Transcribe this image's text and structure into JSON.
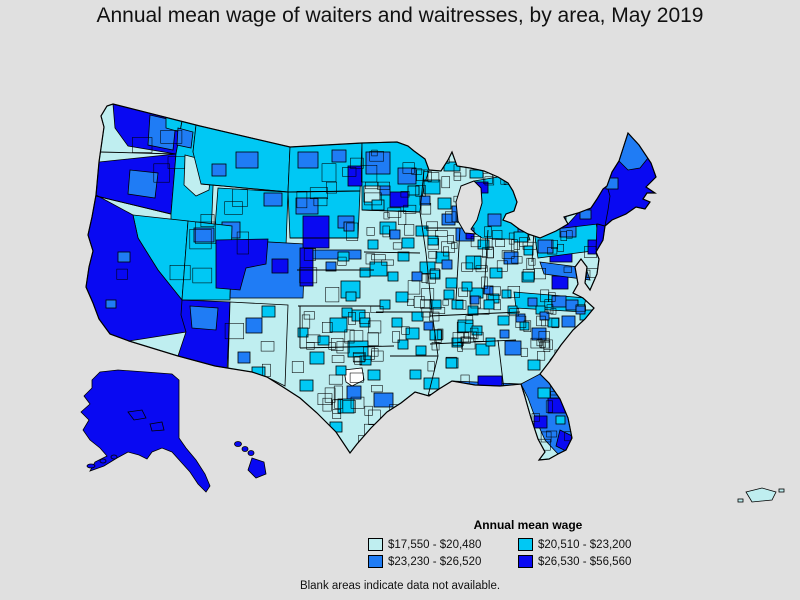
{
  "title": "Annual mean wage of waiters and waitresses, by area, May 2019",
  "chart_data": {
    "type": "choropleth",
    "map_subject": "Annual mean wage of waiters and waitresses by U.S. area, May 2019",
    "legend_title": "Annual mean wage",
    "note": "Blank areas indicate data not available.",
    "background_color": "#e0e0e0",
    "no_data_color": "#ffffff",
    "classes": [
      {
        "label": "$17,550 - $20,480",
        "color": "#bfeef0"
      },
      {
        "label": "$20,510 - $23,200",
        "color": "#00c8f4"
      },
      {
        "label": "$23,230 - $26,520",
        "color": "#1f7cf5"
      },
      {
        "label": "$26,530 - $56,560",
        "color": "#0909f2"
      }
    ],
    "regions": {
      "lower48-base": 1,
      "washington": 4,
      "washington-east": 3,
      "washington-ne": 2,
      "oregon": 4,
      "oregon-central": 3,
      "california": 4,
      "ca-central-1": 3,
      "ca-central-2": 3,
      "nevada": 2,
      "idaho": 2,
      "idaho-central": 1,
      "idaho-north": 3,
      "montana": 2,
      "montana-patch-1": 3,
      "montana-patch-2": 3,
      "north-dakota": 2,
      "nd-east": 4,
      "nd-patch-1": 3,
      "nd-patch-2": 3,
      "minnesota": 2,
      "mn-patch-1": 3,
      "mn-patch-2": 3,
      "mn-pale": 1,
      "minneapolis": 4,
      "south-dakota": 2,
      "sd-patch-1": 3,
      "sd-patch-2": 3,
      "wyoming": 2,
      "wyoming-sw": 3,
      "wyoming-ne": 3,
      "utah": 2,
      "utah-north": 3,
      "utah-east-co-west": 4,
      "colorado": 3,
      "denver": 4,
      "arizona": 4,
      "arizona-north": 3,
      "new-mexico": 1,
      "albuquerque": 3,
      "nm-patch": 3,
      "nm-cyan": 2,
      "plains-dark": 4,
      "plains-dark-2": 4,
      "plains-med-strip": 3,
      "wichita": 2,
      "kansas-city": 2,
      "oklahoma-city": 2,
      "tulsa": 2,
      "texas-dfw": 2,
      "texas-houston": 3,
      "texas-austin": 3,
      "texas-san-antonio": 2,
      "texas-el-paso": 2,
      "texas-blank": 0,
      "iowa-patch-1": 2,
      "iowa-patch-2": 2,
      "missouri-stl": 2,
      "missouri-spr": 2,
      "arkansas-lr": 2,
      "louisiana-no": 2,
      "louisiana-br": 2,
      "mississippi-jackson": 2,
      "alabama-bham": 2,
      "wisconsin-cyan-1": 2,
      "wisconsin-cyan-2": 2,
      "madison": 3,
      "milwaukee": 3,
      "chicago": 3,
      "chicago-core": 4,
      "illinois-cyan-1": 2,
      "illinois-cyan-2": 2,
      "michigan": 2,
      "michigan-nw": 4,
      "detroit": 3,
      "detroit-core": 4,
      "grand-rapids": 3,
      "mi-up-1": 2,
      "mi-up-2": 2,
      "indianapolis": 2,
      "indiana-cyan": 2,
      "columbus": 3,
      "cleveland": 2,
      "cincinnati": 2,
      "ohio-cyan": 2,
      "louisville": 2,
      "lexington": 2,
      "nashville": 2,
      "memphis": 2,
      "knoxville": 2,
      "atlanta": 3,
      "georgia-cyan": 2,
      "sc-coast": 2,
      "charleston": 3,
      "charlotte": 3,
      "raleigh": 3,
      "nc-cyan-1": 2,
      "nc-cyan-2": 2,
      "virginia": 2,
      "virginia-med": 3,
      "richmond": 3,
      "nova": 4,
      "wv-cyan": 2,
      "maryland": 3,
      "baltimore-dc": 4,
      "pennsylvania": 2,
      "pittsburgh": 3,
      "pa-north": 3,
      "philadelphia": 4,
      "new-york": 4,
      "ny-med-1": 3,
      "ny-med-2": 3,
      "long-island": 4,
      "new-jersey": 4,
      "new-england": 4,
      "maine-north": 3,
      "vt-med": 3,
      "ne-blank": 0,
      "florida-panhandle": 3,
      "fl-pan-dark": 4,
      "florida": 3,
      "orlando": 4,
      "tampa-dark": 4,
      "miami": 4,
      "fl-cyan-1": 2,
      "fl-cyan-2": 2,
      "fl-keys": 4,
      "alaska": 4,
      "hawaii": 4,
      "puerto-rico": 1,
      "cyan-cell": 2,
      "med-cell": 3
    }
  }
}
